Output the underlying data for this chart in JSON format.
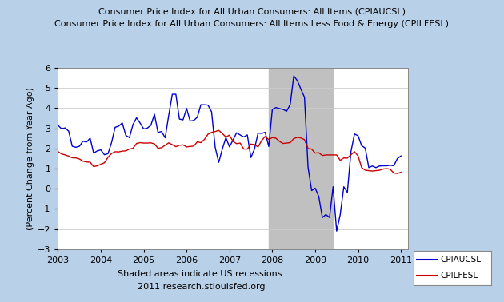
{
  "title_line1": "Consumer Price Index for All Urban Consumers: All Items (CPIAUCSL)",
  "title_line2": "Consumer Price Index for All Urban Consumers: All Items Less Food & Energy (CPILFESL)",
  "ylabel": "(Percent Change from Year Ago)",
  "footer_line1": "Shaded areas indicate US recessions.",
  "footer_line2": "2011 research.stlouisfed.org",
  "legend_labels": [
    "CPIAUCSL",
    "CPILFESL"
  ],
  "legend_colors": [
    "#0000cc",
    "#cc0000"
  ],
  "ylim": [
    -3,
    6
  ],
  "yticks": [
    -3,
    -2,
    -1,
    0,
    1,
    2,
    3,
    4,
    5,
    6
  ],
  "recession_bands": [
    [
      2007.917,
      2009.417
    ]
  ],
  "background_color": "#b8d0e8",
  "plot_bg_color": "#ffffff",
  "recession_color": "#c0c0c0",
  "title_fontsize": 8.0,
  "label_fontsize": 8,
  "tick_fontsize": 8,
  "cpiaucsl": {
    "dates": [
      2003.0,
      2003.083,
      2003.167,
      2003.25,
      2003.333,
      2003.417,
      2003.5,
      2003.583,
      2003.667,
      2003.75,
      2003.833,
      2003.917,
      2004.0,
      2004.083,
      2004.167,
      2004.25,
      2004.333,
      2004.417,
      2004.5,
      2004.583,
      2004.667,
      2004.75,
      2004.833,
      2004.917,
      2005.0,
      2005.083,
      2005.167,
      2005.25,
      2005.333,
      2005.417,
      2005.5,
      2005.583,
      2005.667,
      2005.75,
      2005.833,
      2005.917,
      2006.0,
      2006.083,
      2006.167,
      2006.25,
      2006.333,
      2006.417,
      2006.5,
      2006.583,
      2006.667,
      2006.75,
      2006.833,
      2006.917,
      2007.0,
      2007.083,
      2007.167,
      2007.25,
      2007.333,
      2007.417,
      2007.5,
      2007.583,
      2007.667,
      2007.75,
      2007.833,
      2007.917,
      2008.0,
      2008.083,
      2008.167,
      2008.25,
      2008.333,
      2008.417,
      2008.5,
      2008.583,
      2008.667,
      2008.75,
      2008.833,
      2008.917,
      2009.0,
      2009.083,
      2009.167,
      2009.25,
      2009.333,
      2009.417,
      2009.5,
      2009.583,
      2009.667,
      2009.75,
      2009.833,
      2009.917,
      2010.0,
      2010.083,
      2010.167,
      2010.25,
      2010.333,
      2010.417,
      2010.5,
      2010.583,
      2010.667,
      2010.75,
      2010.833,
      2010.917,
      2011.0
    ],
    "values": [
      3.15,
      2.98,
      3.02,
      2.86,
      2.11,
      2.06,
      2.11,
      2.36,
      2.32,
      2.51,
      1.77,
      1.88,
      1.93,
      1.69,
      1.74,
      2.29,
      3.05,
      3.11,
      3.27,
      2.65,
      2.54,
      3.19,
      3.52,
      3.26,
      2.97,
      3.01,
      3.15,
      3.7,
      2.8,
      2.84,
      2.53,
      3.64,
      4.69,
      4.69,
      3.46,
      3.42,
      3.99,
      3.36,
      3.39,
      3.55,
      4.17,
      4.17,
      4.15,
      3.82,
      2.06,
      1.31,
      1.97,
      2.54,
      2.08,
      2.42,
      2.78,
      2.67,
      2.57,
      2.67,
      1.55,
      1.97,
      2.76,
      2.75,
      2.8,
      2.1,
      3.94,
      4.03,
      3.98,
      3.94,
      3.85,
      4.18,
      5.6,
      5.37,
      4.94,
      4.54,
      1.07,
      -0.09,
      0.03,
      -0.38,
      -1.43,
      -1.28,
      -1.43,
      0.1,
      -2.1,
      -1.29,
      0.1,
      -0.18,
      1.84,
      2.72,
      2.63,
      2.14,
      2.02,
      1.05,
      1.13,
      1.05,
      1.13,
      1.14,
      1.14,
      1.17,
      1.14,
      1.5,
      1.63
    ]
  },
  "cpilfesl": {
    "dates": [
      2003.0,
      2003.083,
      2003.167,
      2003.25,
      2003.333,
      2003.417,
      2003.5,
      2003.583,
      2003.667,
      2003.75,
      2003.833,
      2003.917,
      2004.0,
      2004.083,
      2004.167,
      2004.25,
      2004.333,
      2004.417,
      2004.5,
      2004.583,
      2004.667,
      2004.75,
      2004.833,
      2004.917,
      2005.0,
      2005.083,
      2005.167,
      2005.25,
      2005.333,
      2005.417,
      2005.5,
      2005.583,
      2005.667,
      2005.75,
      2005.833,
      2005.917,
      2006.0,
      2006.083,
      2006.167,
      2006.25,
      2006.333,
      2006.417,
      2006.5,
      2006.583,
      2006.667,
      2006.75,
      2006.833,
      2006.917,
      2007.0,
      2007.083,
      2007.167,
      2007.25,
      2007.333,
      2007.417,
      2007.5,
      2007.583,
      2007.667,
      2007.75,
      2007.833,
      2007.917,
      2008.0,
      2008.083,
      2008.167,
      2008.25,
      2008.333,
      2008.417,
      2008.5,
      2008.583,
      2008.667,
      2008.75,
      2008.833,
      2008.917,
      2009.0,
      2009.083,
      2009.167,
      2009.25,
      2009.333,
      2009.417,
      2009.5,
      2009.583,
      2009.667,
      2009.75,
      2009.833,
      2009.917,
      2010.0,
      2010.083,
      2010.167,
      2010.25,
      2010.333,
      2010.417,
      2010.5,
      2010.583,
      2010.667,
      2010.75,
      2010.833,
      2010.917,
      2011.0
    ],
    "values": [
      1.85,
      1.73,
      1.68,
      1.62,
      1.54,
      1.53,
      1.48,
      1.37,
      1.33,
      1.32,
      1.1,
      1.14,
      1.22,
      1.29,
      1.56,
      1.75,
      1.84,
      1.83,
      1.87,
      1.88,
      1.97,
      2.01,
      2.25,
      2.29,
      2.27,
      2.27,
      2.28,
      2.23,
      2.01,
      2.04,
      2.16,
      2.28,
      2.19,
      2.09,
      2.16,
      2.18,
      2.08,
      2.1,
      2.12,
      2.33,
      2.29,
      2.45,
      2.71,
      2.8,
      2.84,
      2.9,
      2.74,
      2.57,
      2.66,
      2.35,
      2.24,
      2.27,
      1.97,
      1.97,
      2.22,
      2.19,
      2.08,
      2.39,
      2.6,
      2.44,
      2.54,
      2.51,
      2.35,
      2.25,
      2.27,
      2.29,
      2.49,
      2.55,
      2.52,
      2.44,
      2.0,
      1.97,
      1.77,
      1.79,
      1.65,
      1.68,
      1.68,
      1.68,
      1.68,
      1.41,
      1.53,
      1.52,
      1.69,
      1.84,
      1.63,
      1.05,
      0.92,
      0.9,
      0.88,
      0.9,
      0.92,
      0.98,
      1.0,
      0.97,
      0.78,
      0.76,
      0.82
    ]
  }
}
